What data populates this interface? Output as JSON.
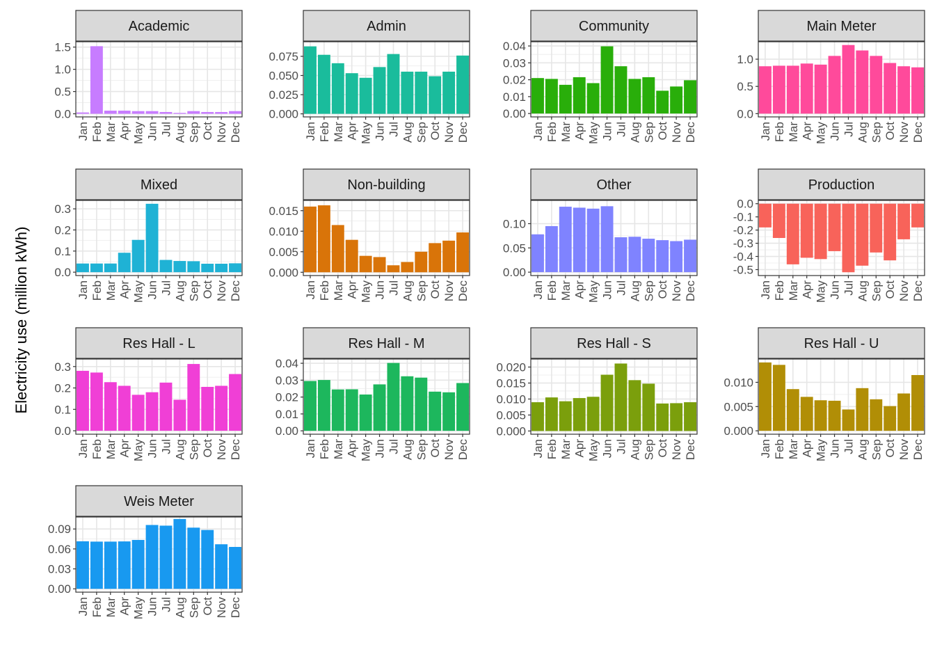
{
  "chart_data": {
    "type": "bar",
    "layout": "faceted grid, 4 columns",
    "ylabel": "Electricity use (million kWh)",
    "xlabel": "",
    "categories": [
      "Jan",
      "Feb",
      "Mar",
      "Apr",
      "May",
      "Jun",
      "Jul",
      "Aug",
      "Sep",
      "Oct",
      "Nov",
      "Dec"
    ],
    "facets": [
      {
        "name": "Academic",
        "color": "#C77CFF",
        "ylim": [
          -0.07,
          1.62
        ],
        "ticks": [
          0.0,
          0.5,
          1.0,
          1.5
        ],
        "tick_labels": [
          "0.0",
          "0.5",
          "1.0",
          "1.5"
        ],
        "values": [
          0.03,
          1.52,
          0.07,
          0.07,
          0.06,
          0.06,
          0.04,
          0.02,
          0.06,
          0.04,
          0.04,
          0.06
        ]
      },
      {
        "name": "Admin",
        "color": "#1ABC9C",
        "ylim": [
          -0.004,
          0.094
        ],
        "ticks": [
          0.0,
          0.025,
          0.05,
          0.075
        ],
        "tick_labels": [
          "0.000",
          "0.025",
          "0.050",
          "0.075"
        ],
        "values": [
          0.088,
          0.077,
          0.066,
          0.053,
          0.047,
          0.061,
          0.078,
          0.055,
          0.055,
          0.049,
          0.055,
          0.076
        ]
      },
      {
        "name": "Community",
        "color": "#29AE0A",
        "ylim": [
          -0.002,
          0.0425
        ],
        "ticks": [
          0.0,
          0.01,
          0.02,
          0.03,
          0.04
        ],
        "tick_labels": [
          "0.00",
          "0.01",
          "0.02",
          "0.03",
          "0.04"
        ],
        "values": [
          0.021,
          0.0205,
          0.017,
          0.0215,
          0.018,
          0.0398,
          0.028,
          0.0205,
          0.0215,
          0.0135,
          0.016,
          0.0197
        ]
      },
      {
        "name": "Main Meter",
        "color": "#FF4A9B",
        "ylim": [
          -0.06,
          1.32
        ],
        "ticks": [
          0.0,
          0.5,
          1.0
        ],
        "tick_labels": [
          "0.0",
          "0.5",
          "1.0"
        ],
        "values": [
          0.87,
          0.88,
          0.88,
          0.92,
          0.9,
          1.06,
          1.26,
          1.16,
          1.06,
          0.93,
          0.87,
          0.85
        ]
      },
      {
        "name": "Mixed",
        "color": "#1FB2D5",
        "ylim": [
          -0.016,
          0.34
        ],
        "ticks": [
          0.0,
          0.1,
          0.2,
          0.3
        ],
        "tick_labels": [
          "0.0",
          "0.1",
          "0.2",
          "0.3"
        ],
        "values": [
          0.041,
          0.041,
          0.041,
          0.092,
          0.153,
          0.324,
          0.058,
          0.053,
          0.052,
          0.04,
          0.04,
          0.042
        ]
      },
      {
        "name": "Non-building",
        "color": "#D97409",
        "ylim": [
          -0.0008,
          0.0175
        ],
        "ticks": [
          0.0,
          0.005,
          0.01,
          0.015
        ],
        "tick_labels": [
          "0.000",
          "0.005",
          "0.010",
          "0.015"
        ],
        "values": [
          0.016,
          0.0163,
          0.0115,
          0.0079,
          0.004,
          0.0037,
          0.0017,
          0.0025,
          0.005,
          0.0071,
          0.0077,
          0.0097
        ]
      },
      {
        "name": "Other",
        "color": "#7F83FF",
        "ylim": [
          -0.007,
          0.148
        ],
        "ticks": [
          0.0,
          0.05,
          0.1
        ],
        "tick_labels": [
          "0.00",
          "0.05",
          "0.10"
        ],
        "values": [
          0.078,
          0.095,
          0.135,
          0.133,
          0.131,
          0.136,
          0.072,
          0.073,
          0.069,
          0.066,
          0.064,
          0.067
        ]
      },
      {
        "name": "Production",
        "color": "#F8635A",
        "ylim": [
          -0.545,
          0.025
        ],
        "ticks": [
          0.0,
          -0.1,
          -0.2,
          -0.3,
          -0.4,
          -0.5
        ],
        "tick_labels": [
          "0.0",
          "-0.1",
          "-0.2",
          "-0.3",
          "-0.4",
          "-0.5"
        ],
        "values": [
          -0.18,
          -0.26,
          -0.46,
          -0.41,
          -0.42,
          -0.36,
          -0.52,
          -0.47,
          -0.37,
          -0.43,
          -0.27,
          -0.18
        ]
      },
      {
        "name": "Res Hall - L",
        "color": "#F03FD6",
        "ylim": [
          -0.016,
          0.335
        ],
        "ticks": [
          0.0,
          0.1,
          0.2,
          0.3
        ],
        "tick_labels": [
          "0.0",
          "0.1",
          "0.2",
          "0.3"
        ],
        "values": [
          0.28,
          0.272,
          0.227,
          0.21,
          0.168,
          0.18,
          0.225,
          0.145,
          0.312,
          0.205,
          0.21,
          0.265
        ]
      },
      {
        "name": "Res Hall - M",
        "color": "#1DB75D",
        "ylim": [
          -0.002,
          0.0425
        ],
        "ticks": [
          0.0,
          0.01,
          0.02,
          0.03,
          0.04
        ],
        "tick_labels": [
          "0.00",
          "0.01",
          "0.02",
          "0.03",
          "0.04"
        ],
        "values": [
          0.0295,
          0.0301,
          0.0245,
          0.0246,
          0.0215,
          0.0275,
          0.0402,
          0.0323,
          0.0315,
          0.0232,
          0.0228,
          0.0283
        ]
      },
      {
        "name": "Res Hall - S",
        "color": "#7B9F0C",
        "ylim": [
          -0.001,
          0.0225
        ],
        "ticks": [
          0.0,
          0.005,
          0.01,
          0.015,
          0.02
        ],
        "tick_labels": [
          "0.000",
          "0.005",
          "0.010",
          "0.015",
          "0.020"
        ],
        "values": [
          0.009,
          0.0105,
          0.0093,
          0.0103,
          0.0107,
          0.0176,
          0.0211,
          0.0159,
          0.0148,
          0.0086,
          0.0087,
          0.009
        ]
      },
      {
        "name": "Res Hall - U",
        "color": "#B18E06",
        "ylim": [
          -0.0007,
          0.0148
        ],
        "ticks": [
          0.0,
          0.005,
          0.01
        ],
        "tick_labels": [
          "0.000",
          "0.005",
          "0.010"
        ],
        "values": [
          0.0141,
          0.0136,
          0.0086,
          0.007,
          0.0063,
          0.0062,
          0.0044,
          0.0088,
          0.0065,
          0.0051,
          0.0077,
          0.0115
        ]
      },
      {
        "name": "Weis Meter",
        "color": "#1899F0",
        "ylim": [
          -0.005,
          0.108
        ],
        "ticks": [
          0.0,
          0.03,
          0.06,
          0.09
        ],
        "tick_labels": [
          "0.00",
          "0.03",
          "0.06",
          "0.09"
        ],
        "values": [
          0.0715,
          0.071,
          0.071,
          0.0713,
          0.0735,
          0.096,
          0.095,
          0.105,
          0.092,
          0.0885,
          0.067,
          0.063
        ]
      }
    ]
  }
}
